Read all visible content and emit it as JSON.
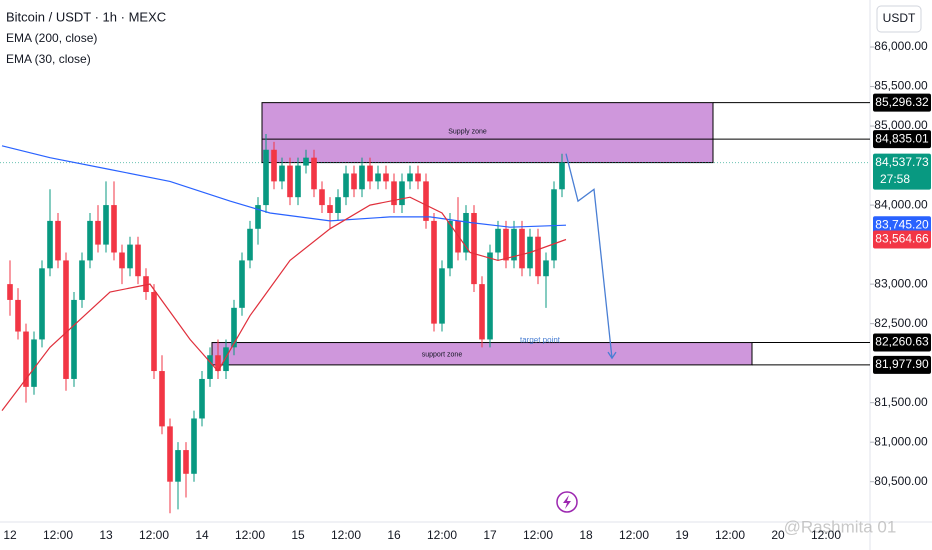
{
  "chart_data": {
    "type": "candlestick",
    "title": "Bitcoin / USDT · 1h · MEXC",
    "indicators": [
      "EMA (200, close)",
      "EMA (30, close)"
    ],
    "currency_button": "USDT",
    "watermark": "@Rashmita 01",
    "up_color": "#089981",
    "down_color": "#f23645",
    "xlim": [
      -2.5,
      215
    ],
    "ylim": [
      79990,
      86595
    ],
    "xticks": [
      {
        "value": 0,
        "label": "12"
      },
      {
        "value": 12,
        "label": "12:00"
      },
      {
        "value": 24,
        "label": "13"
      },
      {
        "value": 36,
        "label": "12:00"
      },
      {
        "value": 48,
        "label": "14"
      },
      {
        "value": 60,
        "label": "12:00"
      },
      {
        "value": 72,
        "label": "15"
      },
      {
        "value": 84,
        "label": "12:00"
      },
      {
        "value": 96,
        "label": "16"
      },
      {
        "value": 108,
        "label": "12:00"
      },
      {
        "value": 120,
        "label": "17"
      },
      {
        "value": 132,
        "label": "12:00"
      },
      {
        "value": 144,
        "label": "18"
      },
      {
        "value": 156,
        "label": "12:00"
      },
      {
        "value": 168,
        "label": "19"
      },
      {
        "value": 180,
        "label": "12:00"
      },
      {
        "value": 192,
        "label": "20"
      },
      {
        "value": 204,
        "label": "12:00"
      }
    ],
    "yticks": [
      {
        "value": 86000,
        "label": "86,000.00"
      },
      {
        "value": 85500,
        "label": "85,500.00"
      },
      {
        "value": 85000,
        "label": "85,000.00"
      },
      {
        "value": 84000,
        "label": "84,000.00"
      },
      {
        "value": 83000,
        "label": "83,000.00"
      },
      {
        "value": 82500,
        "label": "82,500.00"
      },
      {
        "value": 81500,
        "label": "81,500.00"
      },
      {
        "value": 81000,
        "label": "81,000.00"
      },
      {
        "value": 80500,
        "label": "80,500.00"
      }
    ],
    "x": [
      0,
      2,
      4,
      6,
      8,
      10,
      12,
      14,
      16,
      18,
      20,
      22,
      24,
      26,
      28,
      30,
      32,
      34,
      36,
      38,
      40,
      42,
      44,
      46,
      48,
      50,
      52,
      54,
      56,
      58,
      60,
      62,
      64,
      66,
      68,
      70,
      72,
      74,
      76,
      78,
      80,
      82,
      84,
      86,
      88,
      90,
      92,
      94,
      96,
      98,
      100,
      102,
      104,
      106,
      108,
      110,
      112,
      114,
      116,
      118,
      120,
      122,
      124,
      126,
      128,
      130,
      132,
      134,
      136,
      138
    ],
    "open": [
      83000,
      82800,
      82400,
      81700,
      82300,
      83200,
      83800,
      83300,
      81800,
      82800,
      83300,
      83800,
      83500,
      84000,
      83400,
      83200,
      83500,
      83100,
      82900,
      81900,
      81200,
      80500,
      80900,
      80600,
      81300,
      81800,
      82100,
      81900,
      82200,
      82700,
      83300,
      83700,
      84000,
      84700,
      84300,
      84500,
      84100,
      84500,
      84600,
      84200,
      84000,
      83900,
      84100,
      84400,
      84200,
      84500,
      84300,
      84400,
      84300,
      84000,
      84300,
      84400,
      84300,
      83800,
      82500,
      83200,
      83800,
      83400,
      83900,
      83000,
      82300,
      83400,
      83700,
      83300,
      83700,
      83200,
      83600,
      83100,
      83300,
      84200
    ],
    "high": [
      83300,
      82950,
      82500,
      82400,
      83300,
      84200,
      83900,
      83400,
      82900,
      83400,
      83900,
      84000,
      84300,
      84300,
      83500,
      83600,
      83600,
      83200,
      83000,
      82100,
      81300,
      81000,
      81000,
      81400,
      81900,
      82200,
      82300,
      82300,
      82800,
      83400,
      83800,
      84100,
      84900,
      84800,
      84600,
      84600,
      84600,
      84700,
      84700,
      84300,
      84100,
      84200,
      84500,
      84500,
      84600,
      84600,
      84500,
      84500,
      84400,
      84400,
      84500,
      84500,
      84400,
      83900,
      83300,
      83900,
      84100,
      84000,
      84000,
      83100,
      83500,
      83800,
      83800,
      83800,
      83800,
      83700,
      83700,
      83400,
      84300,
      84650
    ],
    "low": [
      82600,
      82300,
      81500,
      81600,
      82200,
      83100,
      83200,
      81650,
      81700,
      82700,
      83200,
      83400,
      83400,
      83300,
      83000,
      83100,
      83000,
      82800,
      81800,
      81100,
      80100,
      80150,
      80300,
      80500,
      81200,
      81700,
      81800,
      81800,
      82100,
      82600,
      83200,
      83500,
      83900,
      84200,
      84200,
      84000,
      84000,
      84400,
      84100,
      83900,
      83700,
      83800,
      84000,
      84100,
      84100,
      84200,
      84200,
      84200,
      83900,
      83900,
      84200,
      84200,
      83700,
      82400,
      82400,
      83100,
      83300,
      83300,
      82900,
      82200,
      82200,
      83300,
      83200,
      83200,
      83100,
      83100,
      83000,
      82700,
      83200,
      84100
    ],
    "close": [
      82800,
      82400,
      81700,
      82300,
      83200,
      83800,
      83300,
      81800,
      82800,
      83300,
      83800,
      83500,
      84000,
      83400,
      83200,
      83500,
      83100,
      82900,
      81900,
      81200,
      80500,
      80900,
      80600,
      81300,
      81800,
      82100,
      81900,
      82200,
      82700,
      83300,
      83700,
      84000,
      84700,
      84300,
      84500,
      84100,
      84500,
      84600,
      84200,
      84000,
      83900,
      84100,
      84400,
      84200,
      84500,
      84300,
      84400,
      84300,
      84000,
      84300,
      84400,
      84300,
      83800,
      82500,
      83200,
      83800,
      83400,
      83900,
      83000,
      82300,
      83400,
      83700,
      83300,
      83700,
      83200,
      83600,
      83100,
      83300,
      84200,
      84537.73
    ],
    "series": [
      {
        "name": "EMA (200, close)",
        "color": "#2962ff",
        "x": [
          -2,
          10,
          25,
          40,
          55,
          65,
          80,
          95,
          105,
          115,
          125,
          139
        ],
        "values": [
          84750,
          84600,
          84450,
          84300,
          84050,
          83900,
          83800,
          83850,
          83850,
          83780,
          83720,
          83745.2
        ]
      },
      {
        "name": "EMA (30, close)",
        "color": "#e0303c",
        "x": [
          -2,
          10,
          25,
          35,
          45,
          52,
          60,
          70,
          80,
          90,
          100,
          108,
          115,
          122,
          130,
          139
        ],
        "values": [
          81400,
          82200,
          82900,
          83000,
          82300,
          81900,
          82600,
          83300,
          83700,
          84000,
          84100,
          83900,
          83400,
          83300,
          83400,
          83564.66
        ]
      }
    ],
    "zones": [
      {
        "label": "Supply zone",
        "color": "#c785d6",
        "x": [
          63,
          175.75
        ],
        "top": 85296.32,
        "bottom": 84537.73
      },
      {
        "label": "support zone",
        "color": "#c785d6",
        "x": [
          50.5,
          185.5
        ],
        "top": 82260.63,
        "bottom": 81977.9
      }
    ],
    "levels": [
      85296.32,
      84835.01,
      82260.63,
      81977.9
    ],
    "annotation": {
      "label": "target point",
      "color": "#4a7fd4",
      "x": [
        139,
        142,
        146,
        150.5
      ],
      "values": [
        84650,
        84050,
        84200,
        82063
      ]
    },
    "price_labels": [
      {
        "value": 85296.32,
        "label": "85,296.32",
        "color": "#000000"
      },
      {
        "value": 84835.01,
        "label": "84,835.01",
        "color": "#000000"
      },
      {
        "value": 84537.73,
        "label": "84,537.73",
        "color": "#089981",
        "countdown": "27:58"
      },
      {
        "value": 83745.2,
        "label": "83,745.20",
        "color": "#2962ff"
      },
      {
        "value": 83564.66,
        "label": "83,564.66",
        "color": "#f23645"
      },
      {
        "value": 82260.63,
        "label": "82,260.63",
        "color": "#000000"
      },
      {
        "value": 81977.9,
        "label": "81,977.90",
        "color": "#000000"
      }
    ]
  }
}
